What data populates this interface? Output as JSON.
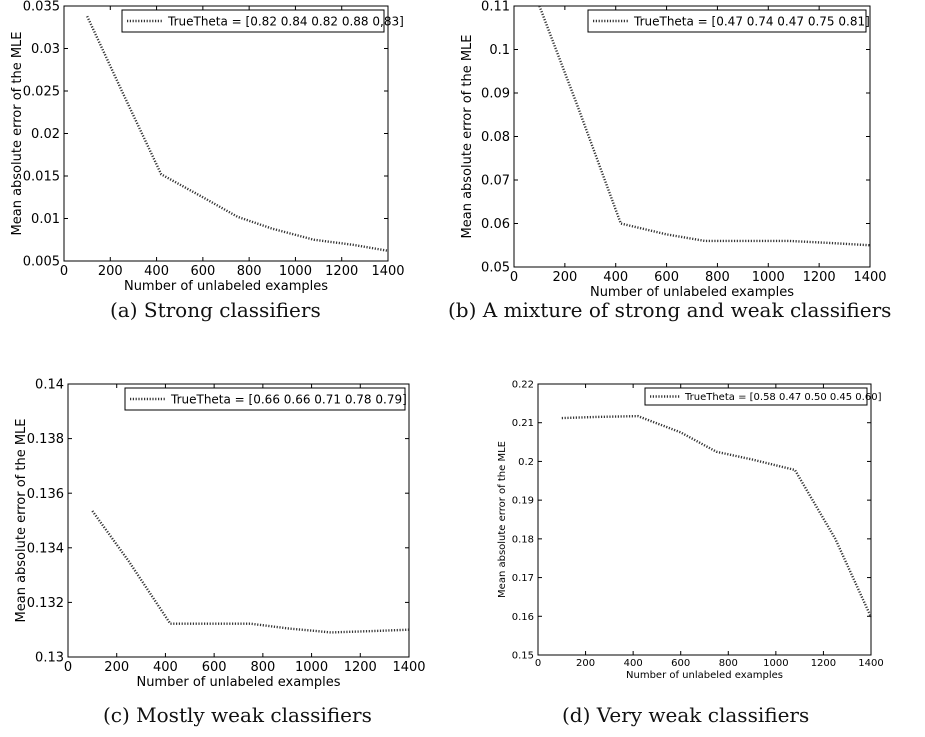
{
  "chart_data": [
    {
      "type": "line",
      "caption": "(a) Strong classifiers",
      "xlabel": "Number of unlabeled examples",
      "ylabel": "Mean absolute error of the MLE",
      "xlim": [
        0,
        1400
      ],
      "ylim": [
        0.005,
        0.035
      ],
      "xticks": [
        0,
        200,
        400,
        600,
        800,
        1000,
        1200,
        1400
      ],
      "yticks": [
        0.005,
        0.01,
        0.015,
        0.02,
        0.025,
        0.03,
        0.035
      ],
      "ytick_labels": [
        "0.005",
        "0.01",
        "0.015",
        "0.02",
        "0.025",
        "0.03",
        "0.035"
      ],
      "legend_position": "top-right",
      "grid": false,
      "series": [
        {
          "name": "TrueTheta = [0.82 0.84 0.82 0.88 0,83]",
          "color": "#333333",
          "x": [
            100,
            250,
            420,
            600,
            750,
            900,
            1080,
            1250,
            1400
          ],
          "y": [
            0.0338,
            0.025,
            0.0152,
            0.0125,
            0.0102,
            0.0088,
            0.0075,
            0.0069,
            0.0062
          ]
        }
      ]
    },
    {
      "type": "line",
      "caption": "(b) A mixture of strong and weak classifiers",
      "xlabel": "Number of unlabeled examples",
      "ylabel": "Mean absolute error of the MLE",
      "xlim": [
        0,
        1400
      ],
      "ylim": [
        0.05,
        0.11
      ],
      "xticks": [
        0,
        200,
        400,
        600,
        800,
        1000,
        1200,
        1400
      ],
      "yticks": [
        0.05,
        0.06,
        0.07,
        0.08,
        0.09,
        0.1,
        0.11
      ],
      "ytick_labels": [
        "0.05",
        "0.06",
        "0.07",
        "0.08",
        "0.09",
        "0.1",
        "0.11"
      ],
      "legend_position": "top-right",
      "grid": false,
      "series": [
        {
          "name": "TrueTheta = [0.47 0.74 0.47 0.75 0.81]",
          "color": "#333333",
          "x": [
            100,
            250,
            420,
            600,
            750,
            900,
            1080,
            1250,
            1400
          ],
          "y": [
            0.11,
            0.087,
            0.06,
            0.0575,
            0.056,
            0.056,
            0.056,
            0.0555,
            0.055
          ]
        }
      ]
    },
    {
      "type": "line",
      "caption": "(c) Mostly weak classifiers",
      "xlabel": "Number of unlabeled examples",
      "ylabel": "Mean absolute error of the MLE",
      "xlim": [
        0,
        1400
      ],
      "ylim": [
        0.13,
        0.14
      ],
      "xticks": [
        0,
        200,
        400,
        600,
        800,
        1000,
        1200,
        1400
      ],
      "yticks": [
        0.13,
        0.132,
        0.134,
        0.136,
        0.138,
        0.14
      ],
      "ytick_labels": [
        "0.13",
        "0.132",
        "0.134",
        "0.136",
        "0.138",
        "0.14"
      ],
      "legend_position": "top-right",
      "grid": false,
      "series": [
        {
          "name": "TrueTheta = [0.66 0.66 0.71 0.78 0.79]",
          "color": "#333333",
          "x": [
            100,
            250,
            420,
            600,
            750,
            900,
            1080,
            1250,
            1400
          ],
          "y": [
            0.13535,
            0.1335,
            0.13122,
            0.13122,
            0.13122,
            0.13105,
            0.1309,
            0.13095,
            0.131
          ]
        }
      ]
    },
    {
      "type": "line",
      "caption": "(d) Very weak classifiers",
      "xlabel": "Number of unlabeled examples",
      "ylabel": "Mean absolute error of the MLE",
      "xlim": [
        0,
        1400
      ],
      "ylim": [
        0.15,
        0.22
      ],
      "xticks": [
        0,
        200,
        400,
        600,
        800,
        1000,
        1200,
        1400
      ],
      "yticks": [
        0.15,
        0.16,
        0.17,
        0.18,
        0.19,
        0.2,
        0.21,
        0.22
      ],
      "ytick_labels": [
        "0.15",
        "0.16",
        "0.17",
        "0.18",
        "0.19",
        "0.2",
        "0.21",
        "0.22"
      ],
      "legend_position": "top-right",
      "grid": false,
      "series": [
        {
          "name": "TrueTheta = [0.58 0.47 0.50 0.45 0.60]",
          "color": "#333333",
          "x": [
            100,
            250,
            420,
            600,
            750,
            900,
            1080,
            1250,
            1400
          ],
          "y": [
            0.2112,
            0.2115,
            0.2117,
            0.2075,
            0.2025,
            0.2005,
            0.1978,
            0.18,
            0.1598
          ]
        }
      ]
    }
  ]
}
